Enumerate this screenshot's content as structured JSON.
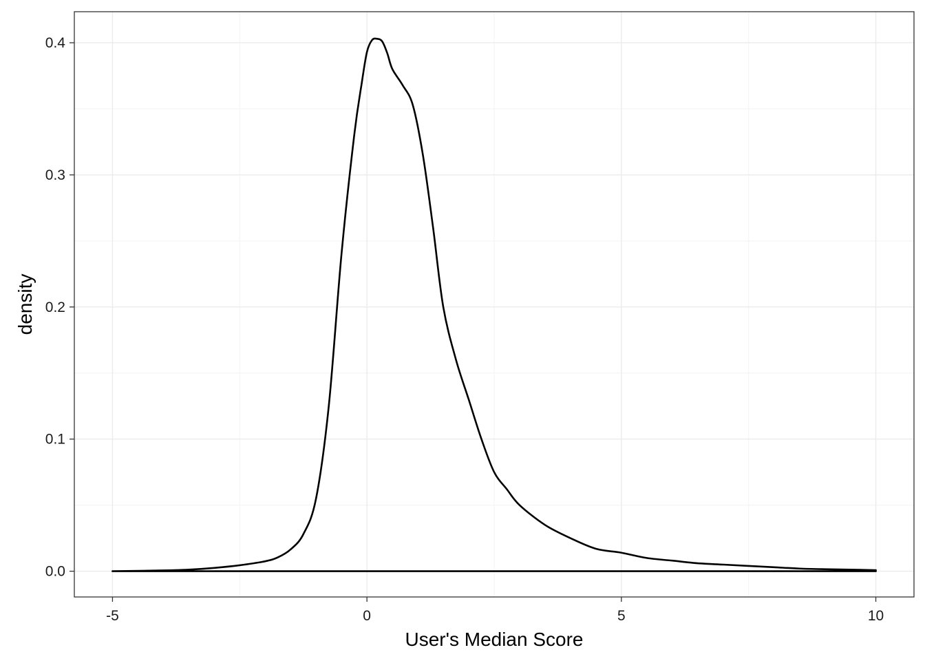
{
  "chart_data": {
    "type": "area",
    "title": "",
    "xlabel": "User's Median Score",
    "ylabel": "density",
    "xlim": [
      -5.75,
      10.75
    ],
    "ylim": [
      -0.0195,
      0.4235
    ],
    "grid": true,
    "x_ticks": [
      -5,
      0,
      5,
      10
    ],
    "x_tick_labels": [
      "-5",
      "0",
      "5",
      "10"
    ],
    "y_ticks": [
      0.0,
      0.1,
      0.2,
      0.3,
      0.4
    ],
    "y_tick_labels": [
      "0.0",
      "0.1",
      "0.2",
      "0.3",
      "0.4"
    ],
    "series": [
      {
        "fill": "none",
        "x": [
          -5.0,
          -4.0,
          -3.5,
          -3.0,
          -2.5,
          -2.0,
          -1.75,
          -1.5,
          -1.25,
          -1.0,
          -0.75,
          -0.5,
          -0.25,
          -0.1,
          0.0,
          0.1,
          0.2,
          0.3,
          0.4,
          0.5,
          0.7,
          0.9,
          1.1,
          1.3,
          1.5,
          1.75,
          2.0,
          2.25,
          2.5,
          2.75,
          3.0,
          3.5,
          4.0,
          4.5,
          5.0,
          5.5,
          6.0,
          6.5,
          7.0,
          7.5,
          8.0,
          8.5,
          9.0,
          9.5,
          10.0
        ],
        "y": [
          0.0,
          0.0006,
          0.0012,
          0.0025,
          0.0045,
          0.0075,
          0.0105,
          0.0165,
          0.028,
          0.055,
          0.125,
          0.24,
          0.33,
          0.37,
          0.393,
          0.402,
          0.403,
          0.401,
          0.392,
          0.38,
          0.368,
          0.353,
          0.315,
          0.26,
          0.2,
          0.16,
          0.13,
          0.1,
          0.075,
          0.062,
          0.05,
          0.035,
          0.025,
          0.017,
          0.014,
          0.01,
          0.008,
          0.006,
          0.005,
          0.004,
          0.003,
          0.002,
          0.0015,
          0.0012,
          0.0008
        ]
      }
    ],
    "colors": {
      "line": "#000000",
      "panel_border": "#333333",
      "grid_major": "#ebebeb",
      "grid_minor": "#f5f5f5",
      "background": "#ffffff"
    }
  }
}
